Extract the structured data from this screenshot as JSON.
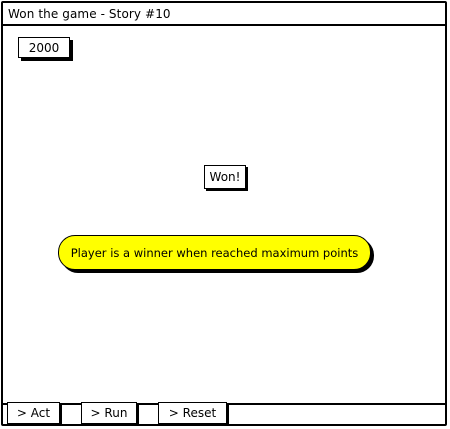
{
  "window": {
    "title": "Won the game - Story #10"
  },
  "score": {
    "value": "2000"
  },
  "status": {
    "label": "Won!"
  },
  "note": {
    "text": "Player is a winner when reached maximum points",
    "color": "#ffff00"
  },
  "toolbar": {
    "act_label": "> Act",
    "run_label": "> Run",
    "reset_label": "> Reset"
  }
}
